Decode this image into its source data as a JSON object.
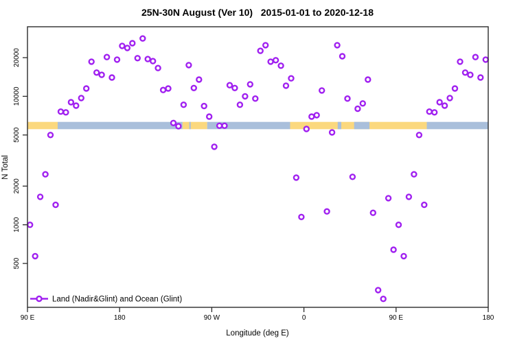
{
  "chart": {
    "title": "25N-30N August (Ver 10)   2015-01-01 to 2020-12-18",
    "x_axis": {
      "label": "Longitude (deg E)",
      "tick_values": [
        90,
        180,
        270,
        360,
        450,
        540
      ],
      "tick_labels": [
        "90 E",
        "180",
        "90 W",
        "0",
        "90 E",
        "180"
      ]
    },
    "y_axis": {
      "label": "N Total",
      "scale": "log",
      "tick_values": [
        500,
        1000,
        2000,
        5000,
        10000,
        20000
      ],
      "tick_labels": [
        "500",
        "1000",
        "2000",
        "5000",
        "10000",
        "20000"
      ]
    },
    "legend": {
      "label": "Land (Nadir&Glint) and Ocean (Glint)"
    },
    "colors": {
      "point": "#A020F0",
      "land": "#FBD87E",
      "ocean": "#A9BFDB",
      "axis": "#2b2b2b",
      "background": "#ffffff"
    }
  },
  "chart_data": {
    "type": "scatter",
    "title": "25N-30N August (Ver 10)   2015-01-01 to 2020-12-18",
    "xlabel": "Longitude (deg E)",
    "ylabel": "N Total",
    "xlim": [
      90,
      540
    ],
    "ylim": [
      210,
      31000
    ],
    "y_scale": "log",
    "grid": false,
    "legend_position": "bottom-left-inside",
    "series_name": "Land (Nadir&Glint) and Ocean (Glint)",
    "x": [
      92.5,
      97.5,
      102.5,
      107.5,
      112.5,
      117.5,
      122.5,
      127.5,
      132.5,
      137.5,
      142.5,
      147.5,
      152.5,
      157.5,
      162.5,
      167.5,
      172.5,
      177.5,
      182.5,
      187.5,
      192.5,
      197.5,
      202.5,
      207.5,
      212.5,
      217.5,
      222.5,
      227.5,
      232.5,
      237.5,
      242.5,
      247.5,
      252.5,
      257.5,
      262.5,
      267.5,
      272.5,
      277.5,
      282.5,
      287.5,
      292.5,
      297.5,
      302.5,
      307.5,
      312.5,
      317.5,
      322.5,
      327.5,
      332.5,
      337.5,
      342.5,
      347.5,
      352.5,
      357.5,
      362.5,
      367.5,
      372.5,
      377.5,
      382.5,
      387.5,
      392.5,
      397.5,
      402.5,
      407.5,
      412.5,
      417.5,
      422.5,
      427.5,
      432.5,
      437.5,
      442.5,
      447.5,
      452.5,
      457.5,
      462.5,
      467.5,
      472.5,
      477.5,
      482.5,
      487.5,
      492.5,
      497.5,
      502.5,
      507.5,
      512.5,
      517.5,
      522.5,
      527.5,
      532.5,
      537.5
    ],
    "values": [
      1000,
      570,
      1650,
      2470,
      5000,
      1430,
      7600,
      7500,
      9000,
      8460,
      9700,
      11500,
      18600,
      15300,
      14700,
      20200,
      14000,
      19300,
      24700,
      23800,
      25900,
      19800,
      28200,
      19500,
      18800,
      16600,
      11200,
      11500,
      6200,
      5850,
      8600,
      17500,
      11600,
      13500,
      8400,
      6950,
      4050,
      5900,
      5900,
      12200,
      11600,
      8600,
      10000,
      12400,
      9600,
      22600,
      25000,
      18600,
      19100,
      17300,
      12100,
      13800,
      2330,
      1150,
      5570,
      6950,
      7130,
      11100,
      1270,
      5240,
      25000,
      20500,
      9600,
      2360,
      8000,
      8800,
      13500,
      1240,
      310,
      265,
      1610,
      640,
      1000,
      570,
      1650,
      2470,
      5000,
      1430,
      7600,
      7500,
      9000,
      8460,
      9700,
      11500,
      18600,
      15300,
      14700,
      20200,
      14000,
      19300
    ],
    "surface_band": {
      "description": "land/ocean strip drawn across plot",
      "value_range": [
        5550,
        6320
      ],
      "segments": [
        {
          "from": 90,
          "to": 119.5,
          "type": "land"
        },
        {
          "from": 119.5,
          "to": 241.5,
          "type": "ocean"
        },
        {
          "from": 241.5,
          "to": 265.5,
          "type": "land"
        },
        {
          "from": 248,
          "to": 249.5,
          "type": "ocean"
        },
        {
          "from": 265.5,
          "to": 346.5,
          "type": "ocean"
        },
        {
          "from": 346.5,
          "to": 480,
          "type": "land"
        },
        {
          "from": 393,
          "to": 396.5,
          "type": "ocean"
        },
        {
          "from": 409,
          "to": 424,
          "type": "ocean"
        },
        {
          "from": 480,
          "to": 540,
          "type": "ocean"
        }
      ]
    }
  }
}
